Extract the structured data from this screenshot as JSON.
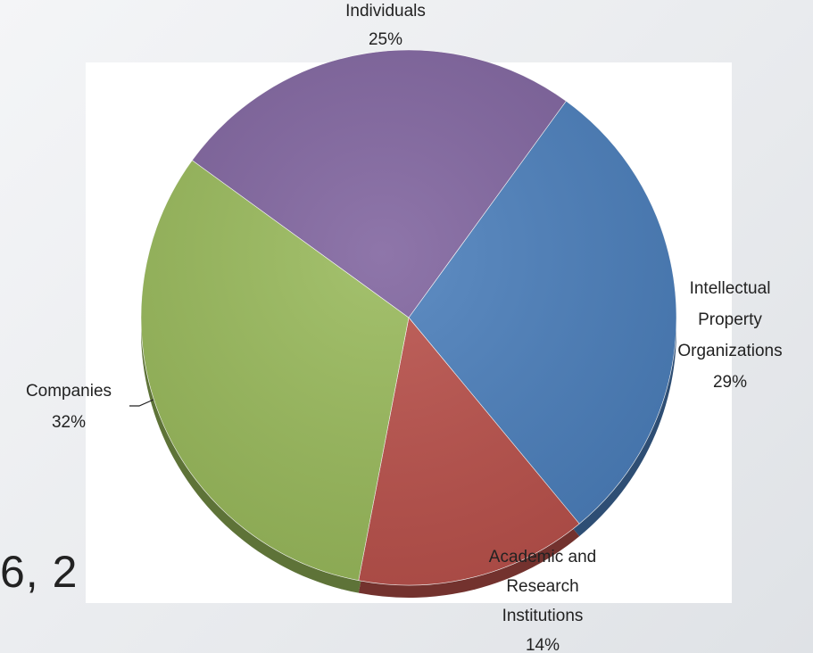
{
  "background": {
    "partial_text": "6, 2"
  },
  "chart_data": {
    "type": "pie",
    "title": "",
    "slices": [
      {
        "label_lines": [
          "Intellectual",
          "Property",
          "Organizations"
        ],
        "value": 29,
        "pct_label": "29%",
        "color": "#4a7ebb"
      },
      {
        "label_lines": [
          "Academic and",
          "Research",
          "Institutions"
        ],
        "value": 14,
        "pct_label": "14%",
        "color": "#b9504a"
      },
      {
        "label_lines": [
          "Companies"
        ],
        "value": 32,
        "pct_label": "32%",
        "color": "#98b95a"
      },
      {
        "label_lines": [
          "Individuals"
        ],
        "value": 25,
        "pct_label": "25%",
        "color": "#7f639e"
      }
    ],
    "start_angle_deg": -54,
    "legend": "none",
    "data_labels": "outside"
  }
}
